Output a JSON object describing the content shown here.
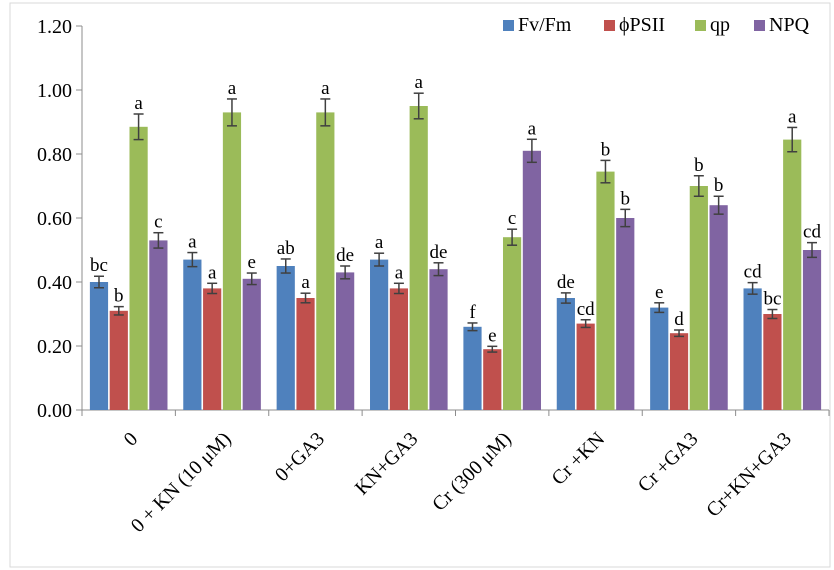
{
  "chart_data": {
    "type": "bar",
    "categories": [
      "0",
      "0 + KN (10 μM)",
      "0+GA3",
      "KN+GA3",
      "Cr (300 μM)",
      "Cr +KN",
      "Cr +GA3",
      "Cr+KN+GA3"
    ],
    "ylim": [
      0,
      1.2
    ],
    "yticks": [
      "0.00",
      "0.20",
      "0.40",
      "0.60",
      "0.80",
      "1.00",
      "1.20"
    ],
    "grid": false,
    "legend_position": "top-right",
    "series": [
      {
        "name": "Fv/Fm",
        "color": "#4F81BD",
        "values": [
          0.4,
          0.47,
          0.45,
          0.47,
          0.26,
          0.35,
          0.32,
          0.38
        ],
        "errors": [
          0.018,
          0.022,
          0.022,
          0.02,
          0.012,
          0.016,
          0.015,
          0.018
        ],
        "labels": [
          "bc",
          "a",
          "ab",
          "a",
          "f",
          "de",
          "e",
          "cd"
        ]
      },
      {
        "name": "ϕPSII",
        "color": "#C0504D",
        "values": [
          0.31,
          0.38,
          0.35,
          0.38,
          0.19,
          0.27,
          0.24,
          0.3
        ],
        "errors": [
          0.013,
          0.016,
          0.015,
          0.016,
          0.009,
          0.012,
          0.01,
          0.014
        ],
        "labels": [
          "b",
          "a",
          "a",
          "a",
          "e",
          "cd",
          "d",
          "bc"
        ]
      },
      {
        "name": "qp",
        "color": "#9BBB59",
        "values": [
          0.885,
          0.93,
          0.93,
          0.95,
          0.54,
          0.745,
          0.7,
          0.845
        ],
        "errors": [
          0.04,
          0.042,
          0.042,
          0.04,
          0.025,
          0.035,
          0.032,
          0.038
        ],
        "labels": [
          "a",
          "a",
          "a",
          "a",
          "c",
          "b",
          "b",
          "a"
        ]
      },
      {
        "name": "NPQ",
        "color": "#8064A2",
        "values": [
          0.53,
          0.41,
          0.43,
          0.44,
          0.81,
          0.6,
          0.64,
          0.5
        ],
        "errors": [
          0.024,
          0.018,
          0.02,
          0.02,
          0.036,
          0.027,
          0.028,
          0.023
        ],
        "labels": [
          "c",
          "e",
          "de",
          "de",
          "a",
          "b",
          "b",
          "cd"
        ]
      }
    ]
  }
}
